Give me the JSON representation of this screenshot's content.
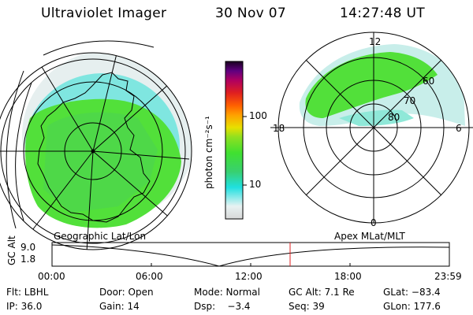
{
  "header": {
    "instrument": "Ultraviolet Imager",
    "date": "30 Nov 07",
    "time": "14:27:48 UT"
  },
  "colorbar": {
    "unit_label": "photon cm⁻²s⁻¹",
    "ticks": [
      "100",
      "10"
    ],
    "colors": [
      "#d8d8d8",
      "#e8f2f2",
      "#20e0e0",
      "#38d070",
      "#40e030",
      "#90e020",
      "#e8e000",
      "#ffa000",
      "#ff6000",
      "#e02020",
      "#b00060",
      "#600080",
      "#1a0020"
    ]
  },
  "geographic": {
    "label": "Geographic Lat/Lon"
  },
  "apex": {
    "label": "Apex MLat/MLT",
    "mlt_labels": [
      "12",
      "18",
      "6",
      "0"
    ],
    "lat_labels": [
      "60",
      "70",
      "80"
    ]
  },
  "timeline": {
    "ylabel": "GC Alt",
    "y_ticks": [
      "9.0",
      "1.8"
    ],
    "x_ticks": [
      "00:00",
      "06:00",
      "12:00",
      "18:00",
      "23:59"
    ],
    "current_marker_color": "#e02020"
  },
  "status": {
    "row1": [
      "Flt: LBHL",
      "Door: Open",
      "Mode: Normal",
      "GC Alt: 7.1 Re",
      "GLat: −83.4"
    ],
    "row2": [
      "IP: 36.0",
      "Gain: 14",
      "Dsp:    −3.4",
      "Seq: 39",
      "GLon: 177.6"
    ]
  }
}
